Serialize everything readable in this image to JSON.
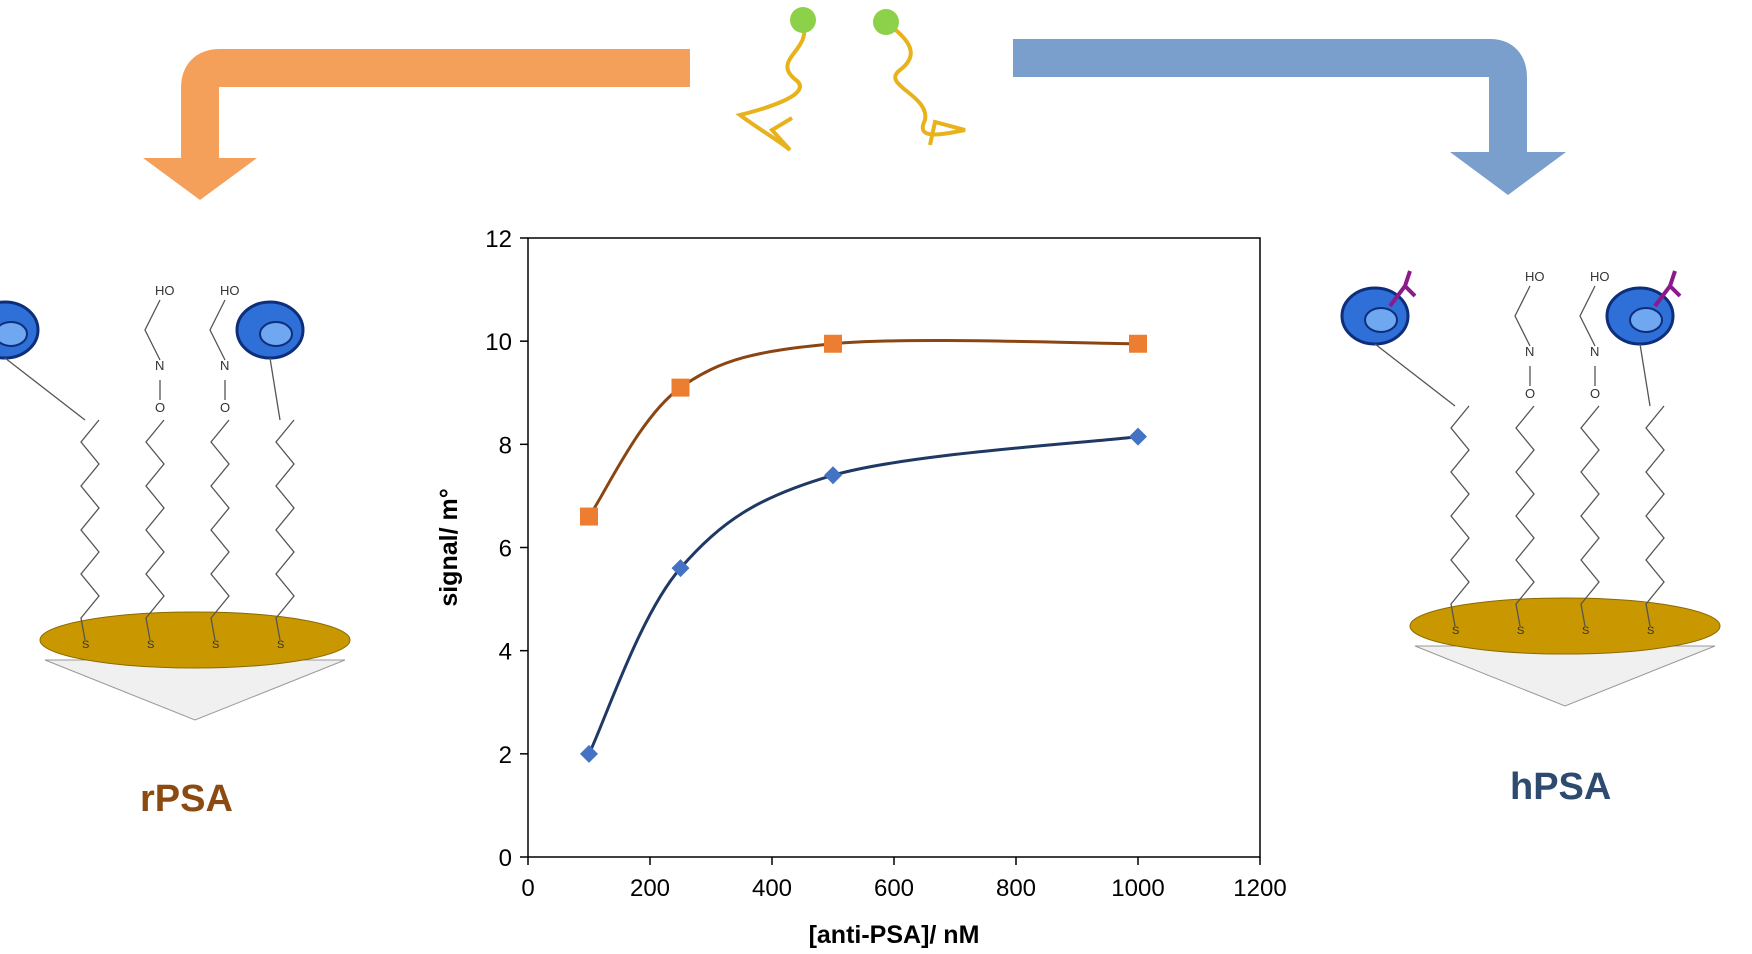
{
  "left_surface": {
    "label": "rPSA",
    "color": "#8B4A12"
  },
  "right_surface": {
    "label": "hPSA",
    "color": "#2E4A6E"
  },
  "molecule_atoms": {
    "hydroxyl": "HO",
    "nitrogen": "N",
    "oxygen": "O",
    "sulfur": "S"
  },
  "arrows": {
    "left_color": "#F5A05A",
    "right_color": "#7A9FCC"
  },
  "aptamer": {
    "strand_color": "#E8B21C",
    "bead_color": "#8DD14A"
  },
  "electrode": {
    "gold_color": "#C99700",
    "base_color": "#F0F0F0"
  },
  "chart_data": {
    "type": "scatter",
    "xlabel": "[anti-PSA]/ nM",
    "ylabel": "signal/ m°",
    "xlim": [
      0,
      1200
    ],
    "ylim": [
      0,
      12
    ],
    "xticks": [
      "0",
      "200",
      "400",
      "600",
      "800",
      "1000",
      "1200"
    ],
    "yticks": [
      "0",
      "2",
      "4",
      "6",
      "8",
      "10",
      "12"
    ],
    "grid": false,
    "legend": "none",
    "series": [
      {
        "marker": "square",
        "color": "#ED7D31",
        "line_color": "#8B4513",
        "x": [
          100,
          250,
          500,
          1000
        ],
        "y": [
          6.6,
          9.1,
          9.95,
          9.95
        ]
      },
      {
        "marker": "diamond",
        "color": "#4472C4",
        "line_color": "#1F3864",
        "x": [
          100,
          250,
          500,
          1000
        ],
        "y": [
          2.0,
          5.6,
          7.4,
          8.15
        ]
      }
    ]
  }
}
